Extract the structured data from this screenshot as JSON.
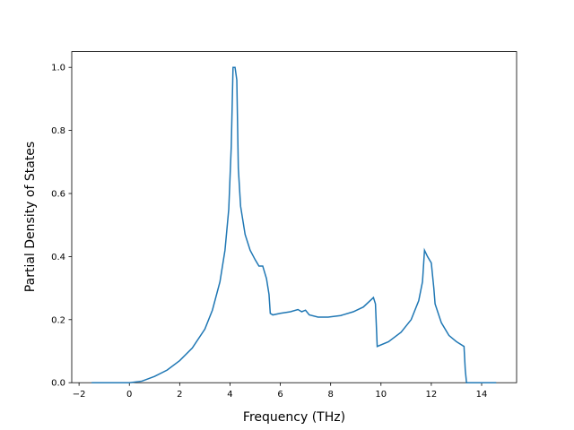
{
  "chart_data": {
    "type": "line",
    "xlabel": "Frequency (THz)",
    "ylabel": "Partial Density of States",
    "x": [
      -1.5,
      0,
      0.5,
      1,
      1.5,
      2,
      2.5,
      3,
      3.3,
      3.6,
      3.8,
      3.95,
      4.05,
      4.12,
      4.2,
      4.27,
      4.33,
      4.42,
      4.6,
      4.8,
      5.0,
      5.15,
      5.3,
      5.45,
      5.55,
      5.6,
      5.7,
      6.0,
      6.4,
      6.7,
      6.85,
      7.0,
      7.15,
      7.5,
      7.9,
      8.4,
      8.9,
      9.3,
      9.7,
      9.78,
      9.85,
      10.3,
      10.8,
      11.2,
      11.5,
      11.65,
      11.73,
      11.85,
      12.0,
      12.1,
      12.15,
      12.4,
      12.7,
      13.0,
      13.3,
      13.35,
      13.4,
      14.58
    ],
    "series": [
      {
        "color": "#1f77b4",
        "values": [
          0,
          0,
          0.005,
          0.02,
          0.04,
          0.07,
          0.11,
          0.17,
          0.23,
          0.32,
          0.42,
          0.55,
          0.75,
          1.0,
          1.0,
          0.96,
          0.68,
          0.56,
          0.47,
          0.42,
          0.39,
          0.37,
          0.37,
          0.33,
          0.28,
          0.22,
          0.215,
          0.22,
          0.225,
          0.232,
          0.225,
          0.23,
          0.215,
          0.208,
          0.208,
          0.213,
          0.225,
          0.24,
          0.27,
          0.25,
          0.115,
          0.13,
          0.16,
          0.2,
          0.26,
          0.32,
          0.42,
          0.4,
          0.38,
          0.3,
          0.25,
          0.19,
          0.15,
          0.13,
          0.115,
          0.04,
          0,
          0
        ]
      }
    ],
    "xlim": [
      -2.29,
      15.39
    ],
    "ylim": [
      0,
      1.05
    ],
    "xticks": [
      {
        "value": -2,
        "label": "−2"
      },
      0,
      2,
      4,
      6,
      8,
      10,
      12,
      14
    ],
    "yticks": [
      {
        "value": 0,
        "label": "0.0"
      },
      {
        "value": 0.2,
        "label": "0.2"
      },
      {
        "value": 0.4,
        "label": "0.4"
      },
      {
        "value": 0.6,
        "label": "0.6"
      },
      {
        "value": 0.8,
        "label": "0.8"
      },
      {
        "value": 1,
        "label": "1.0"
      }
    ]
  }
}
